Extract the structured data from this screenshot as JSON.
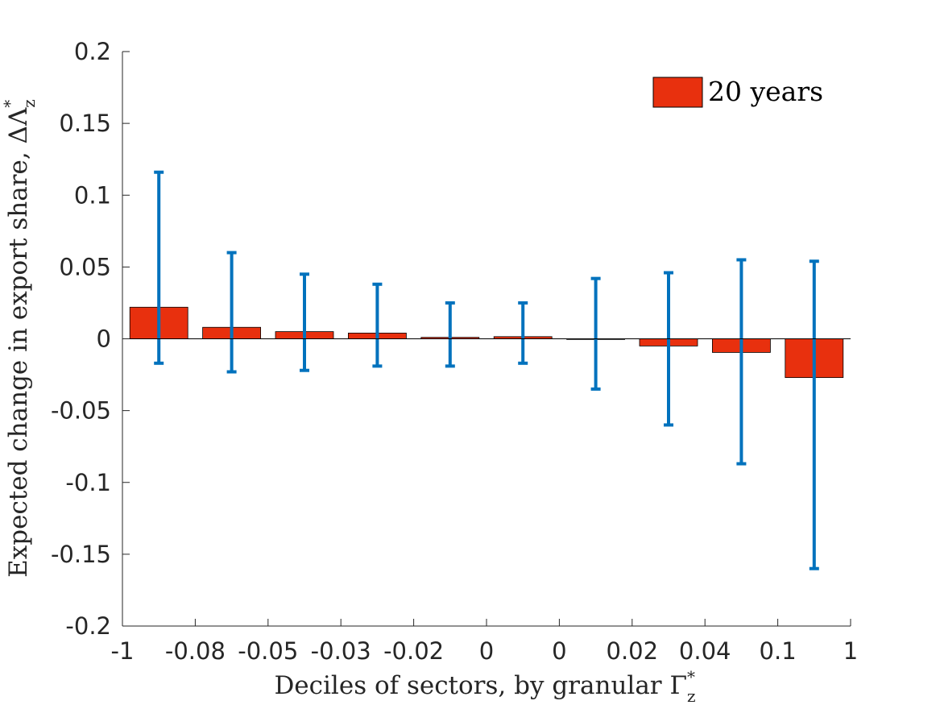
{
  "chart_data": {
    "type": "bar",
    "xlabel": "Deciles of sectors, by granular Γ",
    "xlabel_sup": "*",
    "xlabel_sub": "z",
    "ylabel": "Expected change in export share, ΔΛ",
    "ylabel_sup": "*",
    "ylabel_sub": "z",
    "ylim": [
      -0.2,
      0.2
    ],
    "yticks": [
      "-0.2",
      "-0.15",
      "-0.1",
      "-0.05",
      "0",
      "0.05",
      "0.1",
      "0.15",
      "0.2"
    ],
    "ytick_values": [
      -0.2,
      -0.15,
      -0.1,
      -0.05,
      0,
      0.05,
      0.1,
      0.15,
      0.2
    ],
    "xtick_labels": [
      "-1",
      "-0.08",
      "-0.05",
      "-0.03",
      "-0.02",
      "0",
      "0",
      "0.02",
      "0.04",
      "0.1",
      "1"
    ],
    "values": [
      0.022,
      0.008,
      0.005,
      0.004,
      0.001,
      0.0015,
      0.0,
      -0.005,
      -0.0095,
      -0.027
    ],
    "error_low": [
      -0.017,
      -0.023,
      -0.022,
      -0.019,
      -0.019,
      -0.017,
      -0.035,
      -0.06,
      -0.087,
      -0.16
    ],
    "error_high": [
      0.116,
      0.06,
      0.045,
      0.038,
      0.025,
      0.025,
      0.042,
      0.046,
      0.055,
      0.054
    ],
    "series_name": "20 years",
    "legend_position": "top-right",
    "bar_color": "#e8300e",
    "error_color": "#0072bd",
    "grid": false
  }
}
